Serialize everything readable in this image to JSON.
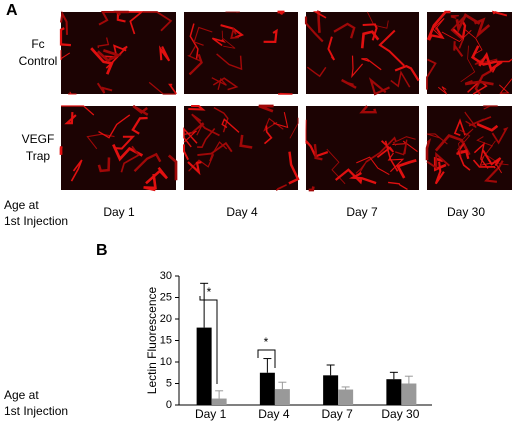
{
  "panel_a": {
    "label": "A",
    "rows": [
      [
        "Fc",
        "Control"
      ],
      [
        "VEGF",
        "Trap"
      ]
    ],
    "columns": [
      "Day 1",
      "Day 4",
      "Day 7",
      "Day 30"
    ],
    "axis_label": [
      "Age at",
      "1st Injection"
    ]
  },
  "chart_data": {
    "type": "bar",
    "label": "B",
    "y_label": "Lectin Fluorescence",
    "x_label": [
      "Age at",
      "1st Injection"
    ],
    "categories": [
      "Day 1",
      "Day 4",
      "Day 7",
      "Day 30"
    ],
    "ylim": [
      0,
      30
    ],
    "yticks": [
      0,
      5,
      10,
      15,
      20,
      25,
      30
    ],
    "series": [
      {
        "color": "#000000",
        "values": [
          18,
          7.5,
          6.9,
          6.0
        ],
        "errors": [
          10.3,
          3.3,
          2.4,
          1.6
        ]
      },
      {
        "color": "#999999",
        "values": [
          1.5,
          3.7,
          3.6,
          5.0
        ],
        "errors": [
          1.8,
          1.6,
          0.6,
          1.7
        ]
      }
    ],
    "annotations": [
      "*",
      "*"
    ]
  }
}
